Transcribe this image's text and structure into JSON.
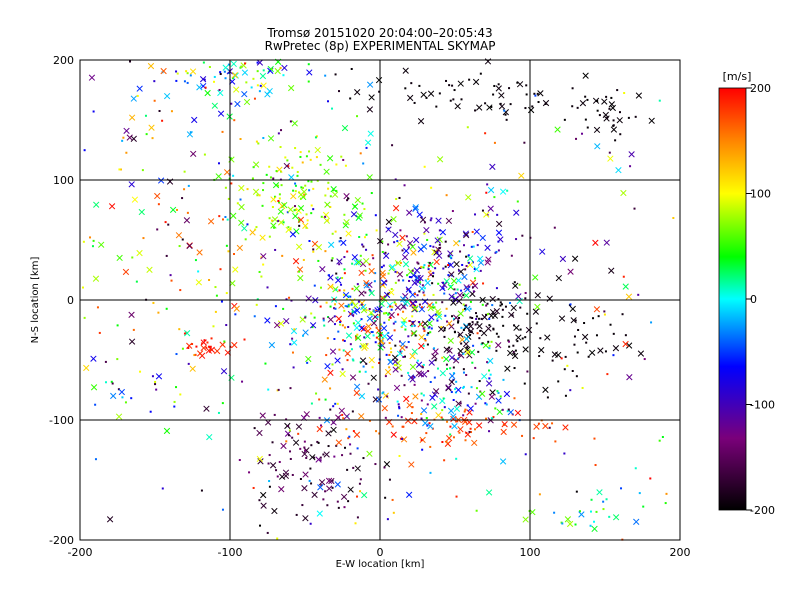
{
  "chart_data": {
    "type": "scatter",
    "title": "Tromsø 20151020 20:04:00–20:05:43",
    "subtitle": "RwPretec (8p) EXPERIMENTAL SKYMAP",
    "xlabel": "E-W location [km]",
    "ylabel": "N-S location [km]",
    "xlim": [
      -200,
      200
    ],
    "ylim": [
      -200,
      200
    ],
    "x_ticks": [
      "-200",
      "-100",
      "0",
      "100",
      "200"
    ],
    "y_ticks": [
      "-200",
      "-100",
      "0",
      "100",
      "200"
    ],
    "grid": true,
    "colorbar": {
      "label": "[m/s]",
      "range": [
        -200,
        200
      ],
      "ticks": [
        "200",
        "100",
        "0",
        "-100",
        "-200"
      ],
      "colormap": "black-purple-blue-cyan-green-yellow-red"
    },
    "markers": [
      "dot",
      "x"
    ],
    "clusters": [
      {
        "x": 0,
        "y": -10,
        "sx": 30,
        "sy": 30,
        "n": 380,
        "vmin": -150,
        "vmax": 200
      },
      {
        "x": 60,
        "y": -20,
        "sx": 15,
        "sy": 12,
        "n": 80,
        "vmin": -200,
        "vmax": -180
      },
      {
        "x": 40,
        "y": 10,
        "sx": 30,
        "sy": 30,
        "n": 120,
        "vmin": -200,
        "vmax": 100
      },
      {
        "x": 45,
        "y": 40,
        "sx": 30,
        "sy": 20,
        "n": 90,
        "vmin": -200,
        "vmax": -50
      },
      {
        "x": -55,
        "y": 85,
        "sx": 25,
        "sy": 25,
        "n": 140,
        "vmin": 40,
        "vmax": 120
      },
      {
        "x": -100,
        "y": 185,
        "sx": 30,
        "sy": 10,
        "n": 70,
        "vmin": -100,
        "vmax": 120
      },
      {
        "x": 60,
        "y": 170,
        "sx": 40,
        "sy": 12,
        "n": 70,
        "vmin": -200,
        "vmax": -190
      },
      {
        "x": 155,
        "y": 155,
        "sx": 12,
        "sy": 10,
        "n": 30,
        "vmin": -200,
        "vmax": -190
      },
      {
        "x": 120,
        "y": -30,
        "sx": 25,
        "sy": 25,
        "n": 70,
        "vmin": -200,
        "vmax": -190
      },
      {
        "x": -50,
        "y": -135,
        "sx": 22,
        "sy": 25,
        "n": 110,
        "vmin": -200,
        "vmax": -120
      },
      {
        "x": 40,
        "y": -105,
        "sx": 40,
        "sy": 10,
        "n": 80,
        "vmin": 150,
        "vmax": 200
      },
      {
        "x": 40,
        "y": -70,
        "sx": 35,
        "sy": 20,
        "n": 140,
        "vmin": -200,
        "vmax": 60
      },
      {
        "x": -115,
        "y": -40,
        "sx": 6,
        "sy": 4,
        "n": 25,
        "vmin": 180,
        "vmax": 200
      },
      {
        "x": -170,
        "y": -70,
        "sx": 18,
        "sy": 15,
        "n": 25,
        "vmin": -200,
        "vmax": 100
      },
      {
        "x": -140,
        "y": 30,
        "sx": 50,
        "sy": 60,
        "n": 80,
        "vmin": 20,
        "vmax": 200
      },
      {
        "x": 140,
        "y": -180,
        "sx": 25,
        "sy": 12,
        "n": 30,
        "vmin": -40,
        "vmax": 80
      },
      {
        "x": -120,
        "y": 140,
        "sx": 50,
        "sy": 40,
        "n": 70,
        "vmin": -200,
        "vmax": 200
      },
      {
        "x": 0,
        "y": 0,
        "sx": 120,
        "sy": 120,
        "n": 350,
        "vmin": -200,
        "vmax": 200
      }
    ]
  }
}
